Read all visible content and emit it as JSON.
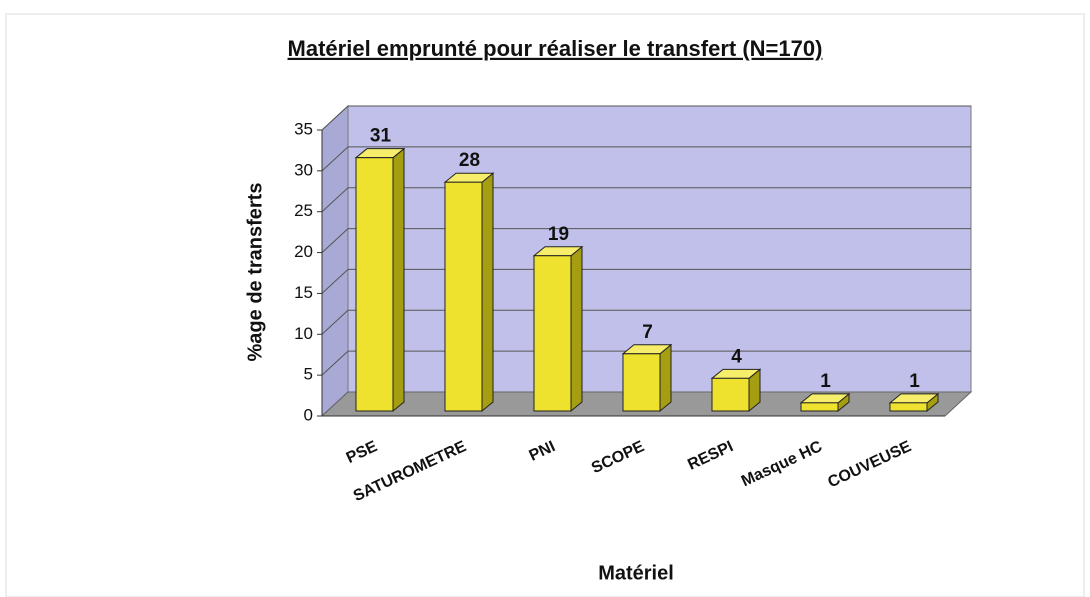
{
  "chart_data": {
    "type": "bar3d",
    "title": "Matériel emprunté pour réaliser le transfert (N=170)",
    "x_label": "Matériel",
    "y_label": "%age de transferts",
    "categories": [
      "PSE",
      "SATUROMETRE",
      "PNI",
      "SCOPE",
      "RESPI",
      "Masque HC",
      "COUVEUSE"
    ],
    "values": [
      31,
      28,
      19,
      7,
      4,
      1,
      1
    ],
    "color": "#eee22e",
    "ylim": [
      0,
      35
    ],
    "yticks": [
      0,
      5,
      10,
      15,
      20,
      25,
      30,
      35
    ],
    "grid": true
  }
}
